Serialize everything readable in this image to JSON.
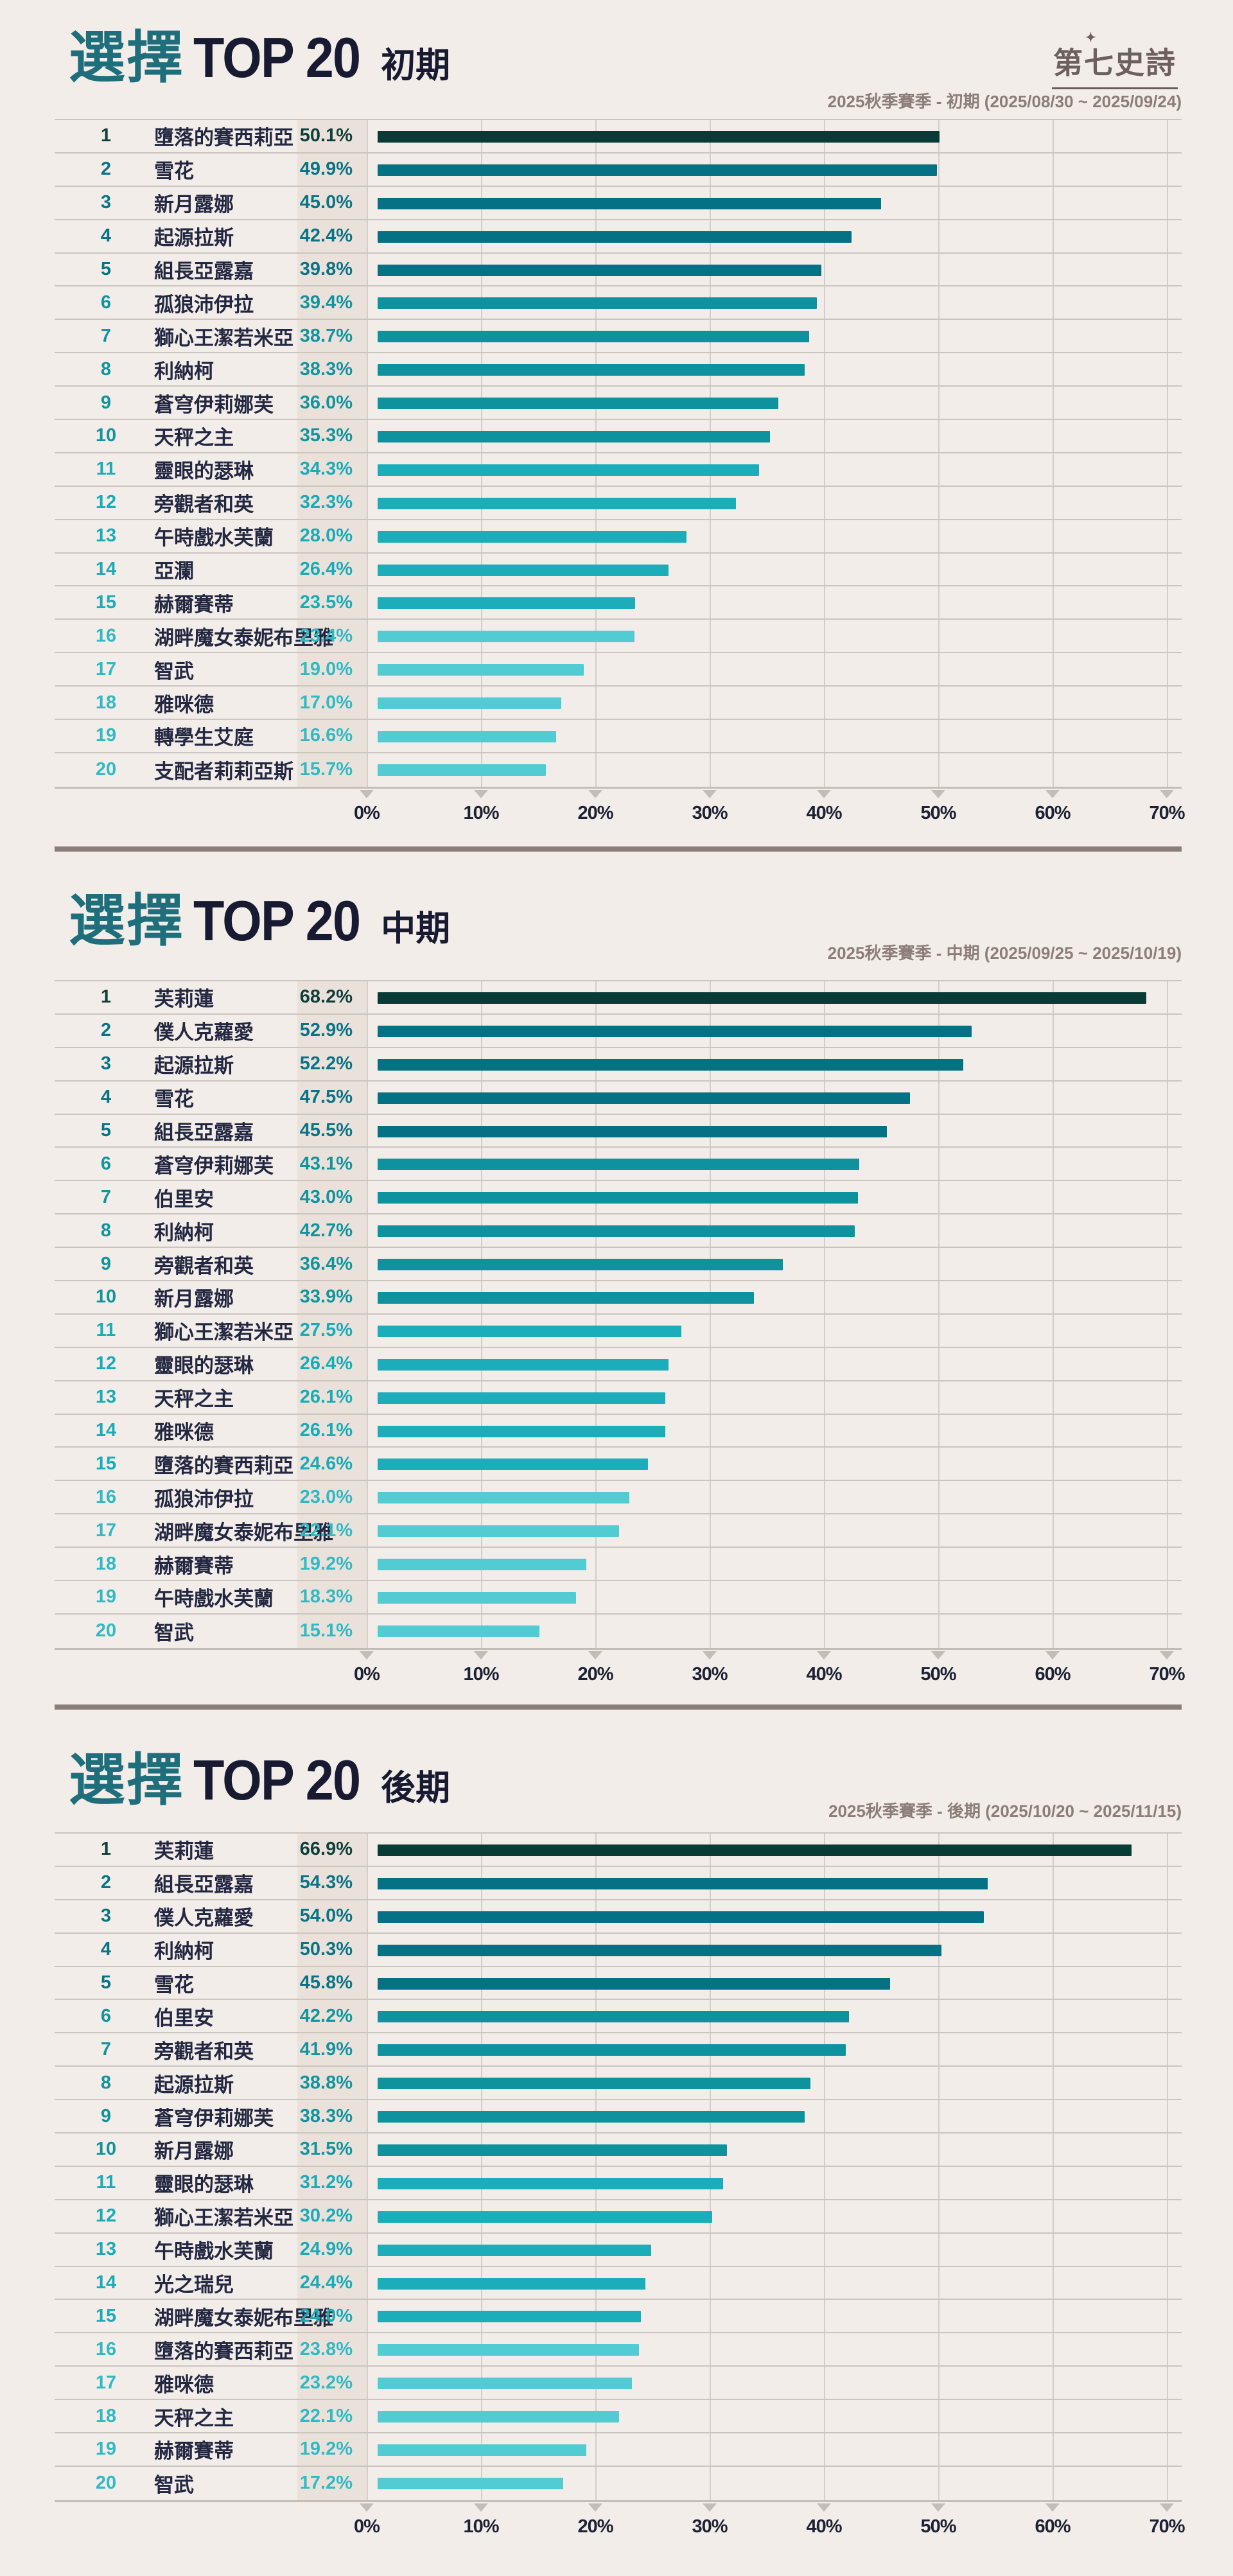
{
  "app": {
    "background": "#f2ede8"
  },
  "logo": {
    "text": "第七史詩",
    "sparkle": "✦"
  },
  "axis": {
    "ticks": [
      "0%",
      "10%",
      "20%",
      "30%",
      "40%",
      "50%",
      "60%",
      "70%"
    ],
    "max": 70
  },
  "palette": {
    "title_highlight": "#1e6e7c",
    "title_main": "#171a31",
    "subtitle": "#8c7d79",
    "logo": "#6d5f5e",
    "name_text": "#232741",
    "divider": "#8b7d79",
    "band": "#eae2da",
    "gridline": "#d3cec9",
    "separator": "#cbc5c0",
    "axis_line": "#c3bdb8",
    "axis_label": "#1d2134",
    "bars": {
      "rank1": "#083b35",
      "rank2_5": "#057184",
      "rank6_10": "#0e939e",
      "rank11_15": "#1badb9",
      "rank16_20": "#52cbd3"
    },
    "text": {
      "rank1": "#0e3f3a",
      "rank2_5": "#0a7386",
      "rank6_10": "#12949f",
      "rank11_15": "#1aabb8",
      "rank16_20": "#31b9c4"
    }
  },
  "chart_data": [
    {
      "type": "bar",
      "orientation": "horizontal",
      "title": "選擇 TOP 20 初期",
      "title_parts": {
        "highlight": "選擇",
        "main": "TOP 20",
        "period": "初期"
      },
      "subtitle": "2025秋季賽季 - 初期 (2025/08/30 ~ 2025/09/24)",
      "xlim": [
        0,
        70
      ],
      "x_ticks": [
        "0%",
        "10%",
        "20%",
        "30%",
        "40%",
        "50%",
        "60%",
        "70%"
      ],
      "grid": true,
      "ranks": [
        1,
        2,
        3,
        4,
        5,
        6,
        7,
        8,
        9,
        10,
        11,
        12,
        13,
        14,
        15,
        16,
        17,
        18,
        19,
        20
      ],
      "categories": [
        "墮落的賽西莉亞",
        "雪花",
        "新月露娜",
        "起源拉斯",
        "組長亞露嘉",
        "孤狼沛伊拉",
        "獅心王潔若米亞",
        "利納柯",
        "蒼穹伊莉娜芙",
        "天秤之主",
        "靈眼的瑟琳",
        "旁觀者和英",
        "午時戲水芙蘭",
        "亞瀾",
        "赫爾賽蒂",
        "湖畔魔女泰妮布里雅",
        "智武",
        "雅咪德",
        "轉學生艾庭",
        "支配者莉莉亞斯"
      ],
      "values": [
        50.1,
        49.9,
        45.0,
        42.4,
        39.8,
        39.4,
        38.7,
        38.3,
        36.0,
        35.3,
        34.3,
        32.3,
        28.0,
        26.4,
        23.5,
        23.4,
        19.0,
        17.0,
        16.6,
        15.7
      ]
    },
    {
      "type": "bar",
      "orientation": "horizontal",
      "title": "選擇 TOP 20 中期",
      "title_parts": {
        "highlight": "選擇",
        "main": "TOP 20",
        "period": "中期"
      },
      "subtitle": "2025秋季賽季 - 中期 (2025/09/25 ~ 2025/10/19)",
      "xlim": [
        0,
        70
      ],
      "x_ticks": [
        "0%",
        "10%",
        "20%",
        "30%",
        "40%",
        "50%",
        "60%",
        "70%"
      ],
      "grid": true,
      "ranks": [
        1,
        2,
        3,
        4,
        5,
        6,
        7,
        8,
        9,
        10,
        11,
        12,
        13,
        14,
        15,
        16,
        17,
        18,
        19,
        20
      ],
      "categories": [
        "芙莉蓮",
        "僕人克蘿愛",
        "起源拉斯",
        "雪花",
        "組長亞露嘉",
        "蒼穹伊莉娜芙",
        "伯里安",
        "利納柯",
        "旁觀者和英",
        "新月露娜",
        "獅心王潔若米亞",
        "靈眼的瑟琳",
        "天秤之主",
        "雅咪德",
        "墮落的賽西莉亞",
        "孤狼沛伊拉",
        "湖畔魔女泰妮布里雅",
        "赫爾賽蒂",
        "午時戲水芙蘭",
        "智武"
      ],
      "values": [
        68.2,
        52.9,
        52.2,
        47.5,
        45.5,
        43.1,
        43.0,
        42.7,
        36.4,
        33.9,
        27.5,
        26.4,
        26.1,
        26.1,
        24.6,
        23.0,
        22.1,
        19.2,
        18.3,
        15.1
      ]
    },
    {
      "type": "bar",
      "orientation": "horizontal",
      "title": "選擇 TOP 20 後期",
      "title_parts": {
        "highlight": "選擇",
        "main": "TOP 20",
        "period": "後期"
      },
      "subtitle": "2025秋季賽季 - 後期 (2025/10/20 ~ 2025/11/15)",
      "xlim": [
        0,
        70
      ],
      "x_ticks": [
        "0%",
        "10%",
        "20%",
        "30%",
        "40%",
        "50%",
        "60%",
        "70%"
      ],
      "grid": true,
      "ranks": [
        1,
        2,
        3,
        4,
        5,
        6,
        7,
        8,
        9,
        10,
        11,
        12,
        13,
        14,
        15,
        16,
        17,
        18,
        19,
        20
      ],
      "categories": [
        "芙莉蓮",
        "組長亞露嘉",
        "僕人克蘿愛",
        "利納柯",
        "雪花",
        "伯里安",
        "旁觀者和英",
        "起源拉斯",
        "蒼穹伊莉娜芙",
        "新月露娜",
        "靈眼的瑟琳",
        "獅心王潔若米亞",
        "午時戲水芙蘭",
        "光之瑞兒",
        "湖畔魔女泰妮布里雅",
        "墮落的賽西莉亞",
        "雅咪德",
        "天秤之主",
        "赫爾賽蒂",
        "智武"
      ],
      "values": [
        66.9,
        54.3,
        54.0,
        50.3,
        45.8,
        42.2,
        41.9,
        38.8,
        38.3,
        31.5,
        31.2,
        30.2,
        24.9,
        24.4,
        24.0,
        23.8,
        23.2,
        22.1,
        19.2,
        17.2
      ]
    }
  ]
}
